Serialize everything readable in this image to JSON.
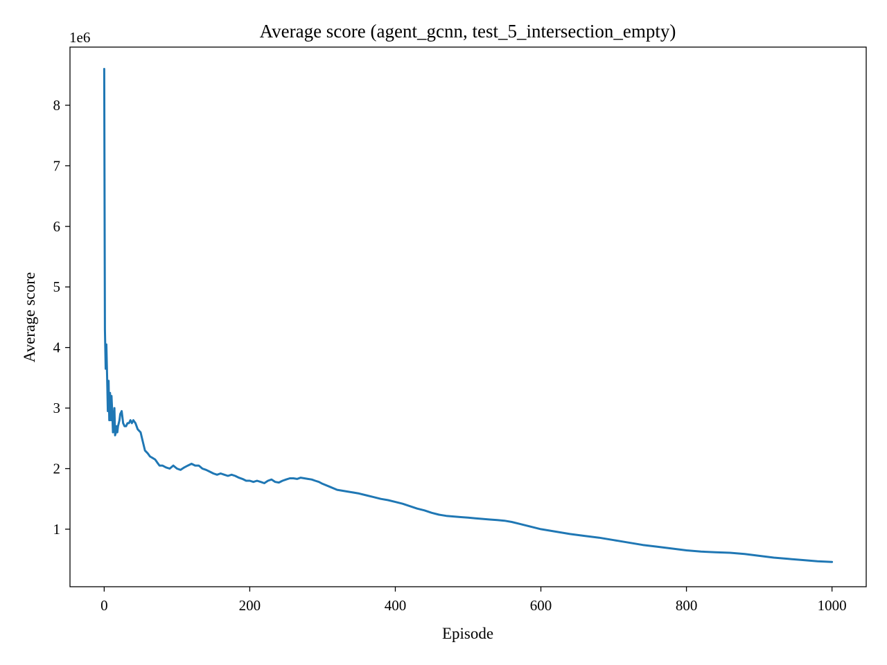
{
  "chart_data": {
    "type": "line",
    "title": "Average score (agent_gcnn, test_5_intersection_empty)",
    "xlabel": "Episode",
    "ylabel": "Average score",
    "y_offset_label": "1e6",
    "xlim": [
      -47,
      1047
    ],
    "ylim": [
      0.05,
      8.96
    ],
    "x_ticks": [
      0,
      200,
      400,
      600,
      800,
      1000
    ],
    "x_tick_labels": [
      "0",
      "200",
      "400",
      "600",
      "800",
      "1000"
    ],
    "y_ticks": [
      1,
      2,
      3,
      4,
      5,
      6,
      7,
      8
    ],
    "y_tick_labels": [
      "1",
      "2",
      "3",
      "4",
      "5",
      "6",
      "7",
      "8"
    ],
    "grid": false,
    "colors": {
      "series": "#1f77b4"
    },
    "series": [
      {
        "x": [
          0,
          1,
          2,
          3,
          4,
          5,
          6,
          7,
          8,
          9,
          10,
          11,
          12,
          13,
          14,
          15,
          16,
          17,
          18,
          19,
          20,
          21,
          22,
          24,
          26,
          28,
          30,
          32,
          34,
          36,
          38,
          40,
          43,
          46,
          50,
          53,
          56,
          60,
          63,
          66,
          70,
          73,
          76,
          80,
          85,
          90,
          95,
          100,
          105,
          110,
          115,
          120,
          125,
          130,
          135,
          140,
          145,
          150,
          155,
          160,
          165,
          170,
          175,
          180,
          185,
          190,
          195,
          200,
          205,
          210,
          215,
          220,
          225,
          230,
          235,
          240,
          245,
          250,
          255,
          260,
          265,
          270,
          275,
          280,
          285,
          290,
          295,
          300,
          310,
          320,
          330,
          340,
          350,
          360,
          370,
          380,
          390,
          400,
          410,
          420,
          430,
          440,
          450,
          460,
          470,
          480,
          490,
          500,
          510,
          520,
          530,
          540,
          550,
          560,
          570,
          580,
          590,
          600,
          620,
          640,
          660,
          680,
          700,
          720,
          740,
          760,
          780,
          800,
          820,
          840,
          860,
          880,
          900,
          920,
          940,
          960,
          980,
          1000
        ],
        "values": [
          8.6,
          4.3,
          3.65,
          4.05,
          3.5,
          2.95,
          3.45,
          2.8,
          3.25,
          2.8,
          3.2,
          2.95,
          2.6,
          2.75,
          3.0,
          2.55,
          2.6,
          2.7,
          2.6,
          2.7,
          2.75,
          2.8,
          2.9,
          2.95,
          2.75,
          2.7,
          2.7,
          2.75,
          2.75,
          2.8,
          2.75,
          2.8,
          2.75,
          2.65,
          2.6,
          2.45,
          2.3,
          2.25,
          2.2,
          2.18,
          2.15,
          2.1,
          2.05,
          2.05,
          2.02,
          2.0,
          2.05,
          2.0,
          1.98,
          2.02,
          2.05,
          2.08,
          2.05,
          2.05,
          2.0,
          1.98,
          1.95,
          1.92,
          1.9,
          1.92,
          1.9,
          1.88,
          1.9,
          1.88,
          1.85,
          1.83,
          1.8,
          1.8,
          1.78,
          1.8,
          1.78,
          1.76,
          1.8,
          1.82,
          1.78,
          1.77,
          1.8,
          1.82,
          1.84,
          1.84,
          1.83,
          1.85,
          1.84,
          1.83,
          1.82,
          1.8,
          1.78,
          1.75,
          1.7,
          1.65,
          1.63,
          1.61,
          1.59,
          1.56,
          1.53,
          1.5,
          1.48,
          1.45,
          1.42,
          1.38,
          1.34,
          1.31,
          1.27,
          1.24,
          1.22,
          1.21,
          1.2,
          1.19,
          1.18,
          1.17,
          1.16,
          1.15,
          1.14,
          1.12,
          1.09,
          1.06,
          1.03,
          1.0,
          0.96,
          0.92,
          0.89,
          0.86,
          0.82,
          0.78,
          0.74,
          0.71,
          0.68,
          0.65,
          0.63,
          0.62,
          0.61,
          0.59,
          0.56,
          0.53,
          0.51,
          0.49,
          0.47,
          0.46
        ]
      }
    ]
  }
}
